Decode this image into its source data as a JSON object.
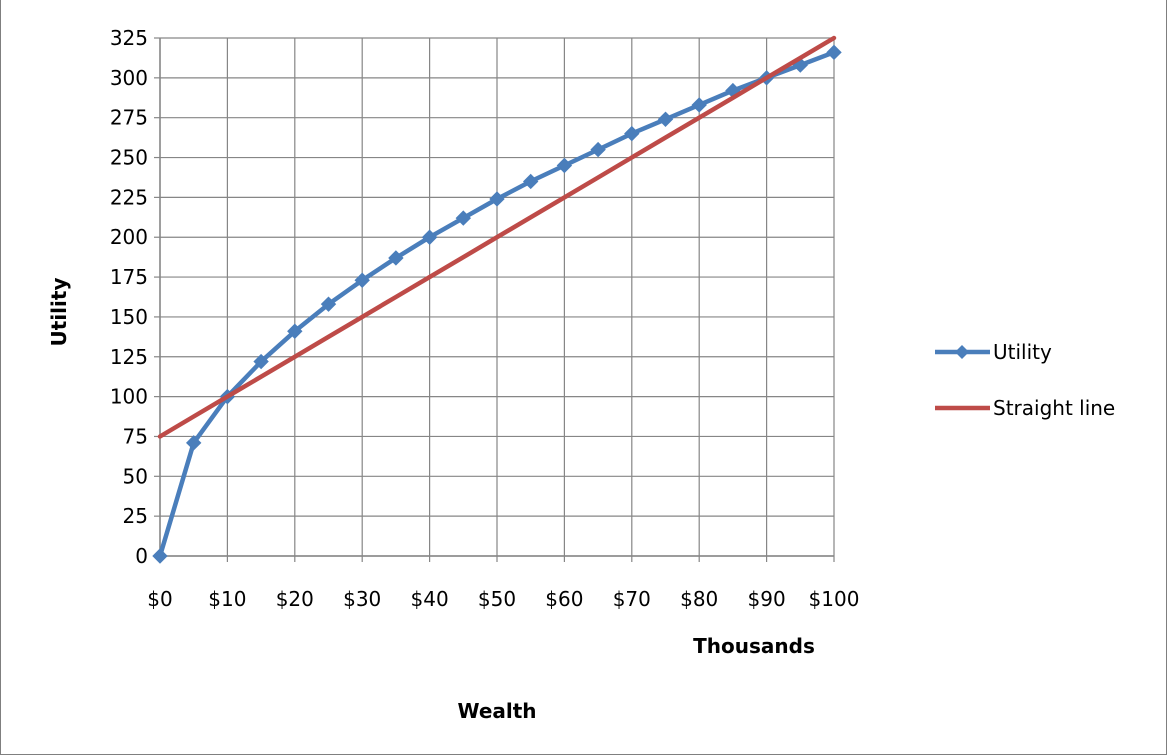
{
  "chart_data": {
    "type": "line",
    "title": "",
    "xlabel": "Wealth",
    "x_unit_label": "Thousands",
    "ylabel": "Utility",
    "x_tick_labels": [
      "$0",
      "$10",
      "$20",
      "$30",
      "$40",
      "$50",
      "$60",
      "$70",
      "$80",
      "$90",
      "$100"
    ],
    "x_tick_values": [
      0,
      10,
      20,
      30,
      40,
      50,
      60,
      70,
      80,
      90,
      100
    ],
    "y_tick_labels": [
      "0",
      "25",
      "50",
      "75",
      "100",
      "125",
      "150",
      "175",
      "200",
      "225",
      "250",
      "275",
      "300",
      "325"
    ],
    "y_tick_values": [
      0,
      25,
      50,
      75,
      100,
      125,
      150,
      175,
      200,
      225,
      250,
      275,
      300,
      325
    ],
    "xlim": [
      0,
      100
    ],
    "ylim": [
      0,
      325
    ],
    "grid": true,
    "legend_position": "right",
    "x": [
      0,
      5,
      10,
      15,
      20,
      25,
      30,
      35,
      40,
      45,
      50,
      55,
      60,
      65,
      70,
      75,
      80,
      85,
      90,
      95,
      100
    ],
    "series": [
      {
        "name": "Utility",
        "color": "#4a7ebb",
        "marker": "diamond",
        "values": [
          0,
          71,
          100,
          122,
          141,
          158,
          173,
          187,
          200,
          212,
          224,
          235,
          245,
          255,
          265,
          274,
          283,
          292,
          300,
          308,
          316
        ]
      },
      {
        "name": "Straight line",
        "color": "#be4b48",
        "marker": "none",
        "values": [
          75,
          87.5,
          100,
          112.5,
          125,
          137.5,
          150,
          162.5,
          175,
          187.5,
          200,
          212.5,
          225,
          237.5,
          250,
          262.5,
          275,
          287.5,
          300,
          312.5,
          325
        ]
      }
    ]
  }
}
